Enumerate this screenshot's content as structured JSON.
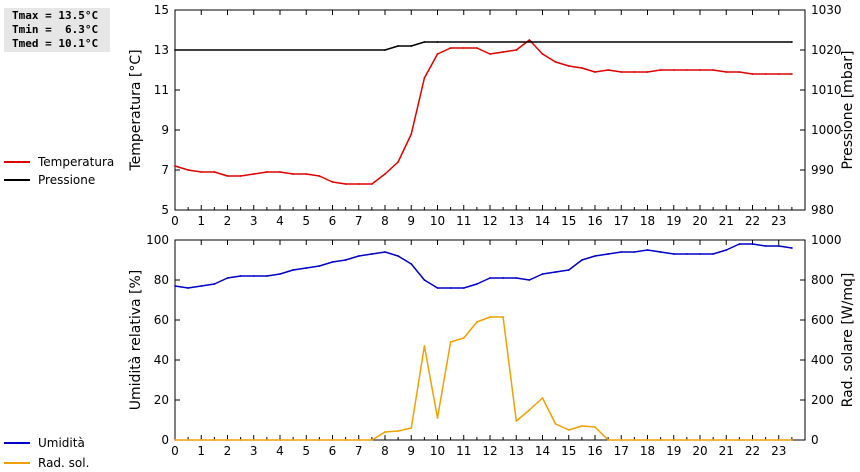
{
  "stats": {
    "tmax": "Tmax = 13.5°C",
    "tmin": "Tmin =  6.3°C",
    "tmed": "Tmed = 10.1°C"
  },
  "legend_top": [
    {
      "label": "Temperatura",
      "color": "#e00000"
    },
    {
      "label": "Pressione",
      "color": "#000000"
    }
  ],
  "legend_bottom": [
    {
      "label": "Umidità",
      "color": "#0000c8"
    },
    {
      "label": "Rad. sol.",
      "color": "#f0a000"
    }
  ],
  "chart_data": [
    {
      "type": "line",
      "ylabel": "Temperatura [°C]",
      "y2label": "Pressione [mbar]",
      "xlim": [
        0,
        24
      ],
      "ylim": [
        5,
        15
      ],
      "y2lim": [
        980,
        1030
      ],
      "xticks": [
        0,
        1,
        2,
        3,
        4,
        5,
        6,
        7,
        8,
        9,
        10,
        11,
        12,
        13,
        14,
        15,
        16,
        17,
        18,
        19,
        20,
        21,
        22,
        23
      ],
      "yticks": [
        5,
        7,
        9,
        11,
        13,
        15
      ],
      "y2ticks": [
        980,
        990,
        1000,
        1010,
        1020,
        1030
      ],
      "grid": false,
      "series": [
        {
          "name": "Temperatura",
          "axis": "left",
          "color": "#e00000",
          "x": [
            0,
            0.5,
            1,
            1.5,
            2,
            2.5,
            3,
            3.5,
            4,
            4.5,
            5,
            5.5,
            6,
            6.5,
            7,
            7.5,
            8,
            8.5,
            9,
            9.5,
            10,
            10.5,
            11,
            11.5,
            12,
            12.5,
            13,
            13.5,
            14,
            14.5,
            15,
            15.5,
            16,
            16.5,
            17,
            17.5,
            18,
            18.5,
            19,
            19.5,
            20,
            20.5,
            21,
            21.5,
            22,
            22.5,
            23,
            23.5
          ],
          "y": [
            7.2,
            7.0,
            6.9,
            6.9,
            6.7,
            6.7,
            6.8,
            6.9,
            6.9,
            6.8,
            6.8,
            6.7,
            6.4,
            6.3,
            6.3,
            6.3,
            6.8,
            7.4,
            8.8,
            11.6,
            12.8,
            13.1,
            13.1,
            13.1,
            12.8,
            12.9,
            13.0,
            13.5,
            12.8,
            12.4,
            12.2,
            12.1,
            11.9,
            12.0,
            11.9,
            11.9,
            11.9,
            12.0,
            12.0,
            12.0,
            12.0,
            12.0,
            11.9,
            11.9,
            11.8,
            11.8,
            11.8,
            11.8
          ]
        },
        {
          "name": "Pressione",
          "axis": "right",
          "color": "#000000",
          "x": [
            0,
            8,
            8.5,
            9,
            9.5,
            10,
            23.5
          ],
          "y": [
            1020,
            1020,
            1021,
            1021,
            1022,
            1022,
            1022
          ]
        }
      ]
    },
    {
      "type": "line",
      "ylabel": "Umidità relativa [%]",
      "y2label": "Rad. solare [W/mq]",
      "xlim": [
        0,
        24
      ],
      "ylim": [
        0,
        100
      ],
      "y2lim": [
        0,
        1000
      ],
      "xticks": [
        0,
        1,
        2,
        3,
        4,
        5,
        6,
        7,
        8,
        9,
        10,
        11,
        12,
        13,
        14,
        15,
        16,
        17,
        18,
        19,
        20,
        21,
        22,
        23
      ],
      "yticks": [
        0,
        20,
        40,
        60,
        80,
        100
      ],
      "y2ticks": [
        0,
        200,
        400,
        600,
        800,
        1000
      ],
      "grid": false,
      "series": [
        {
          "name": "Umidità",
          "axis": "left",
          "color": "#0000c8",
          "x": [
            0,
            0.5,
            1,
            1.5,
            2,
            2.5,
            3,
            3.5,
            4,
            4.5,
            5,
            5.5,
            6,
            6.5,
            7,
            7.5,
            8,
            8.5,
            9,
            9.5,
            10,
            10.5,
            11,
            11.5,
            12,
            12.5,
            13,
            13.5,
            14,
            14.5,
            15,
            15.5,
            16,
            16.5,
            17,
            17.5,
            18,
            18.5,
            19,
            19.5,
            20,
            20.5,
            21,
            21.5,
            22,
            22.5,
            23,
            23.5
          ],
          "y": [
            77,
            76,
            77,
            78,
            81,
            82,
            82,
            82,
            83,
            85,
            86,
            87,
            89,
            90,
            92,
            93,
            94,
            92,
            88,
            80,
            76,
            76,
            76,
            78,
            81,
            81,
            81,
            80,
            83,
            84,
            85,
            90,
            92,
            93,
            94,
            94,
            95,
            94,
            93,
            93,
            93,
            93,
            95,
            98,
            98,
            97,
            97,
            96
          ]
        },
        {
          "name": "Rad. sol.",
          "axis": "right",
          "color": "#f0a000",
          "x": [
            0,
            0.5,
            1,
            1.5,
            2,
            2.5,
            3,
            3.5,
            4,
            4.5,
            5,
            5.5,
            6,
            6.5,
            7,
            7.5,
            8,
            8.5,
            9,
            9.5,
            10,
            10.5,
            11,
            11.5,
            12,
            12.5,
            13,
            13.5,
            14,
            14.5,
            15,
            15.5,
            16,
            16.5,
            17,
            17.5,
            18,
            18.5,
            19,
            19.5,
            20,
            20.5,
            21,
            21.5,
            22,
            22.5,
            23,
            23.5
          ],
          "y": [
            0,
            0,
            0,
            0,
            0,
            0,
            0,
            0,
            0,
            0,
            0,
            0,
            0,
            0,
            0,
            0,
            40,
            45,
            60,
            470,
            110,
            490,
            510,
            590,
            615,
            615,
            95,
            150,
            210,
            80,
            50,
            70,
            65,
            0,
            0,
            0,
            0,
            0,
            0,
            0,
            0,
            0,
            0,
            0,
            0,
            0,
            0,
            0
          ]
        }
      ]
    }
  ]
}
